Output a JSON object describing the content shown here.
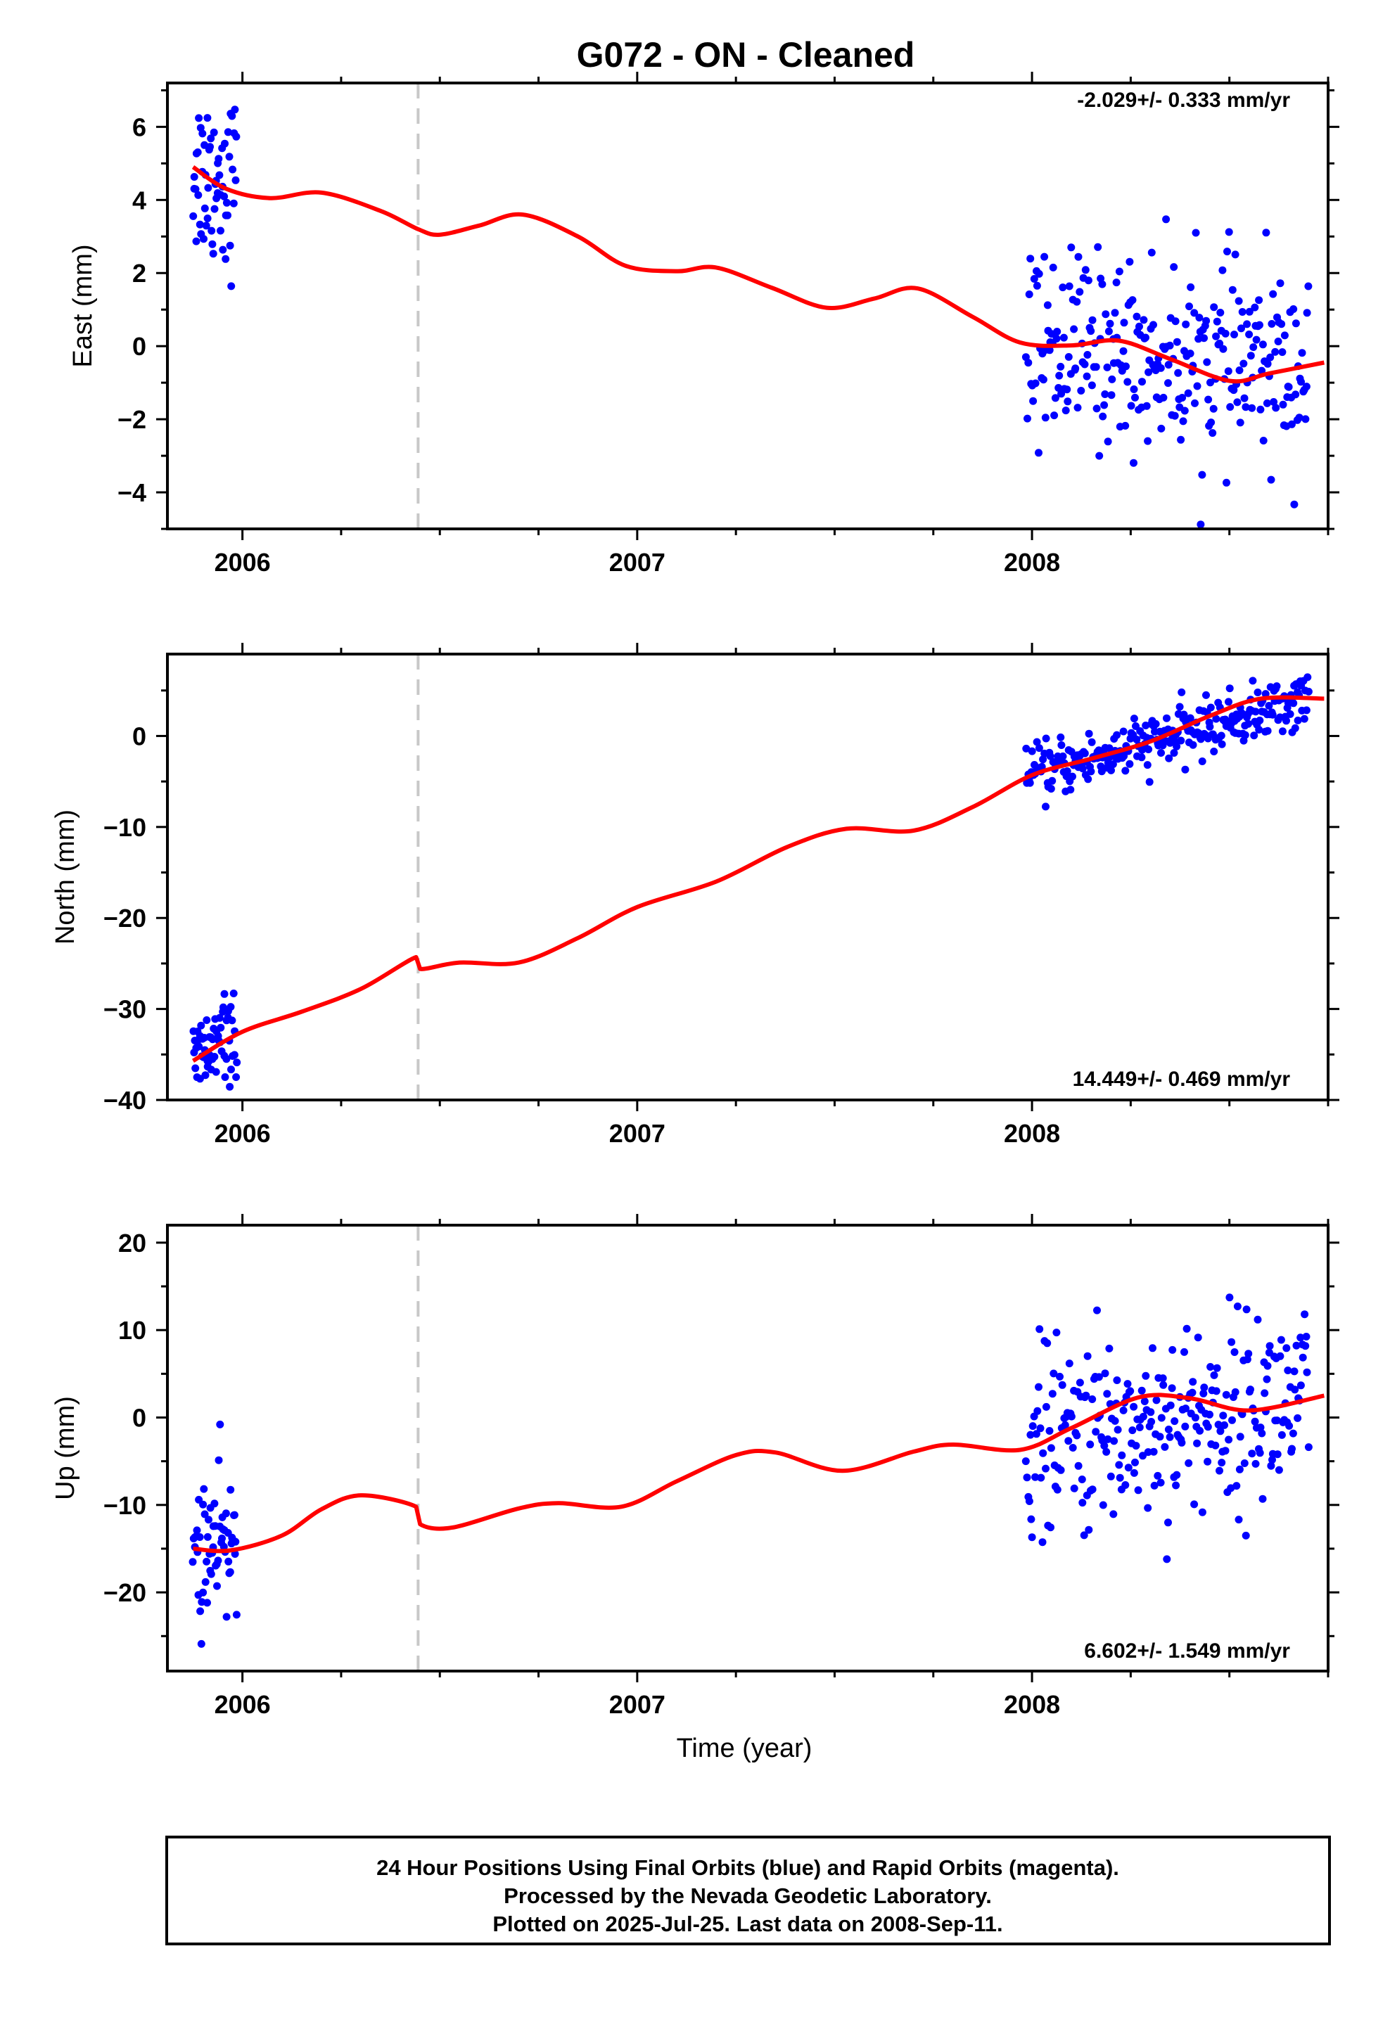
{
  "title": "G072  - ON - Cleaned",
  "colors": {
    "final_orbits": "#0000ff",
    "model": "#ff0000",
    "step": "#c8c8c8",
    "frame": "#000000"
  },
  "caption": {
    "line1": "24 Hour Positions Using Final Orbits (blue) and Rapid Orbits (magenta).",
    "line2": "Processed by the Nevada Geodetic Laboratory.",
    "line3": "Plotted on 2025-Jul-25. Last data on 2008-Sep-11."
  },
  "chart_data": [
    {
      "type": "scatter",
      "ylabel": "East (mm)",
      "xlabel": "",
      "xlim": [
        2005.81,
        2008.75
      ],
      "ylim": [
        -5,
        7.2
      ],
      "xticks": [
        "2006",
        "2007",
        "2008"
      ],
      "yticks": [
        "6",
        "4",
        "2",
        "0",
        "−2",
        "−4"
      ],
      "rate": "-2.029+/- 0.333 mm/yr",
      "step_epoch": 2006.445,
      "model_knots": [
        [
          2005.875,
          4.9
        ],
        [
          2005.96,
          4.3
        ],
        [
          2006.07,
          4.05
        ],
        [
          2006.2,
          4.2
        ],
        [
          2006.35,
          3.7
        ],
        [
          2006.445,
          3.2
        ],
        [
          2006.5,
          3.05
        ],
        [
          2006.6,
          3.3
        ],
        [
          2006.71,
          3.6
        ],
        [
          2006.85,
          3.0
        ],
        [
          2006.97,
          2.2
        ],
        [
          2007.1,
          2.05
        ],
        [
          2007.2,
          2.15
        ],
        [
          2007.34,
          1.6
        ],
        [
          2007.48,
          1.05
        ],
        [
          2007.6,
          1.3
        ],
        [
          2007.71,
          1.58
        ],
        [
          2007.85,
          0.8
        ],
        [
          2007.97,
          0.1
        ],
        [
          2008.1,
          0.02
        ],
        [
          2008.22,
          0.15
        ],
        [
          2008.35,
          -0.35
        ],
        [
          2008.5,
          -0.95
        ],
        [
          2008.6,
          -0.75
        ],
        [
          2008.74,
          -0.45
        ]
      ],
      "points": [
        {
          "seg": 1,
          "t0": 2005.875,
          "t1": 2005.985,
          "n": 60,
          "model": [
            4.8,
            4.5
          ],
          "spread": 1.2
        },
        {
          "seg": 2,
          "t0": 2007.985,
          "t1": 2008.7,
          "n": 280,
          "model": [
            0.05,
            -0.6
          ],
          "spread": 1.3
        }
      ]
    },
    {
      "type": "scatter",
      "ylabel": "North (mm)",
      "xlabel": "",
      "xlim": [
        2005.81,
        2008.75
      ],
      "ylim": [
        -40,
        9
      ],
      "xticks": [
        "2006",
        "2007",
        "2008"
      ],
      "yticks": [
        "0",
        "−10",
        "−20",
        "−30",
        "−40"
      ],
      "rate": "14.449+/- 0.469 mm/yr",
      "step_epoch": 2006.445,
      "model_knots": [
        [
          2005.875,
          -35.7
        ],
        [
          2006.0,
          -32.5
        ],
        [
          2006.15,
          -30.3
        ],
        [
          2006.3,
          -27.8
        ],
        [
          2006.44,
          -24.3
        ],
        [
          2006.45,
          -25.6
        ],
        [
          2006.55,
          -24.9
        ],
        [
          2006.7,
          -24.9
        ],
        [
          2006.85,
          -22.2
        ],
        [
          2007.0,
          -18.8
        ],
        [
          2007.2,
          -16.0
        ],
        [
          2007.38,
          -12.2
        ],
        [
          2007.53,
          -10.2
        ],
        [
          2007.7,
          -10.4
        ],
        [
          2007.85,
          -7.8
        ],
        [
          2008.0,
          -4.3
        ],
        [
          2008.15,
          -2.5
        ],
        [
          2008.3,
          -0.6
        ],
        [
          2008.45,
          2.2
        ],
        [
          2008.58,
          4.1
        ],
        [
          2008.74,
          4.1
        ]
      ],
      "points": [
        {
          "seg": 1,
          "t0": 2005.875,
          "t1": 2005.985,
          "n": 60,
          "model": [
            -35.8,
            -32.5
          ],
          "spread": 2.3
        },
        {
          "seg": 2,
          "t0": 2007.985,
          "t1": 2008.7,
          "n": 280,
          "model": [
            -4.5,
            4.0
          ],
          "spread": 1.5
        }
      ]
    },
    {
      "type": "scatter",
      "ylabel": "Up (mm)",
      "xlabel": "Time (year)",
      "xlim": [
        2005.81,
        2008.75
      ],
      "ylim": [
        -29,
        22
      ],
      "xticks": [
        "2006",
        "2007",
        "2008"
      ],
      "yticks": [
        "20",
        "10",
        "0",
        "−10",
        "−20"
      ],
      "rate": "6.602+/- 1.549 mm/yr",
      "step_epoch": 2006.445,
      "model_knots": [
        [
          2005.875,
          -15.0
        ],
        [
          2005.97,
          -15.2
        ],
        [
          2006.1,
          -13.5
        ],
        [
          2006.2,
          -10.5
        ],
        [
          2006.3,
          -8.9
        ],
        [
          2006.44,
          -10.2
        ],
        [
          2006.45,
          -12.2
        ],
        [
          2006.53,
          -12.6
        ],
        [
          2006.7,
          -10.4
        ],
        [
          2006.8,
          -9.8
        ],
        [
          2006.96,
          -10.2
        ],
        [
          2007.1,
          -7.3
        ],
        [
          2007.25,
          -4.3
        ],
        [
          2007.35,
          -4.0
        ],
        [
          2007.52,
          -6.1
        ],
        [
          2007.7,
          -3.9
        ],
        [
          2007.8,
          -3.1
        ],
        [
          2007.97,
          -3.7
        ],
        [
          2008.1,
          -1.2
        ],
        [
          2008.27,
          2.3
        ],
        [
          2008.4,
          2.2
        ],
        [
          2008.55,
          0.8
        ],
        [
          2008.74,
          2.5
        ]
      ],
      "points": [
        {
          "seg": 1,
          "t0": 2005.875,
          "t1": 2005.985,
          "n": 60,
          "model": [
            -15.0,
            -15.0
          ],
          "spread": 4.5
        },
        {
          "seg": 2,
          "t0": 2007.985,
          "t1": 2008.7,
          "n": 280,
          "model": [
            -3.0,
            2.0
          ],
          "spread": 5.5
        }
      ]
    }
  ]
}
